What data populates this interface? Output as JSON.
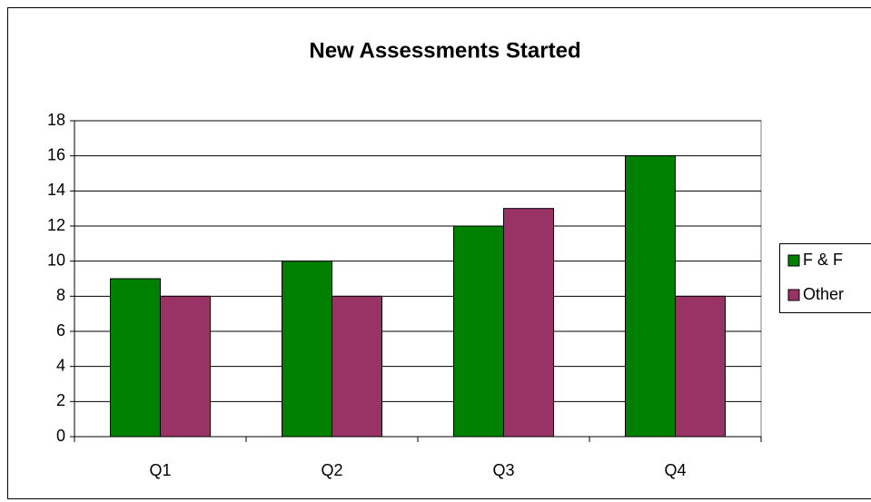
{
  "chart_data": {
    "type": "bar",
    "title": "New Assessments Started",
    "categories": [
      "Q1",
      "Q2",
      "Q3",
      "Q4"
    ],
    "series": [
      {
        "name": "F & F",
        "color": "#008000",
        "values": [
          9,
          10,
          12,
          16
        ]
      },
      {
        "name": "Other",
        "color": "#993366",
        "values": [
          8,
          8,
          13,
          8
        ]
      }
    ],
    "ylim": [
      0,
      18
    ],
    "yticks": [
      0,
      2,
      4,
      6,
      8,
      10,
      12,
      14,
      16,
      18
    ],
    "grid": true,
    "legend": "right"
  }
}
